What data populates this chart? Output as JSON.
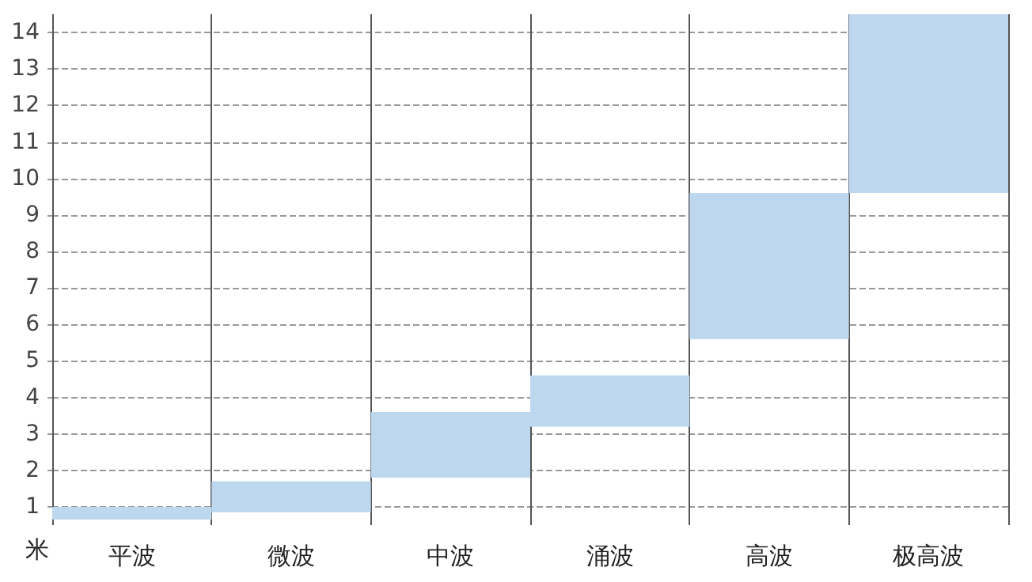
{
  "chart_data": {
    "type": "bar",
    "ylabel": "米",
    "categories": [
      "平波",
      "微波",
      "中波",
      "涌波",
      "高波",
      "极高波"
    ],
    "base": [
      0.65,
      0.85,
      1.8,
      3.2,
      5.6,
      9.6
    ],
    "values": [
      0.35,
      0.85,
      1.8,
      1.4,
      4,
      4.9
    ],
    "color": "#bcd7ee",
    "ylim": [
      0.5,
      14.5
    ],
    "yticks": [
      1,
      2,
      3,
      4,
      5,
      6,
      7,
      8,
      9,
      10,
      11,
      12,
      13,
      14
    ],
    "grid": true
  }
}
